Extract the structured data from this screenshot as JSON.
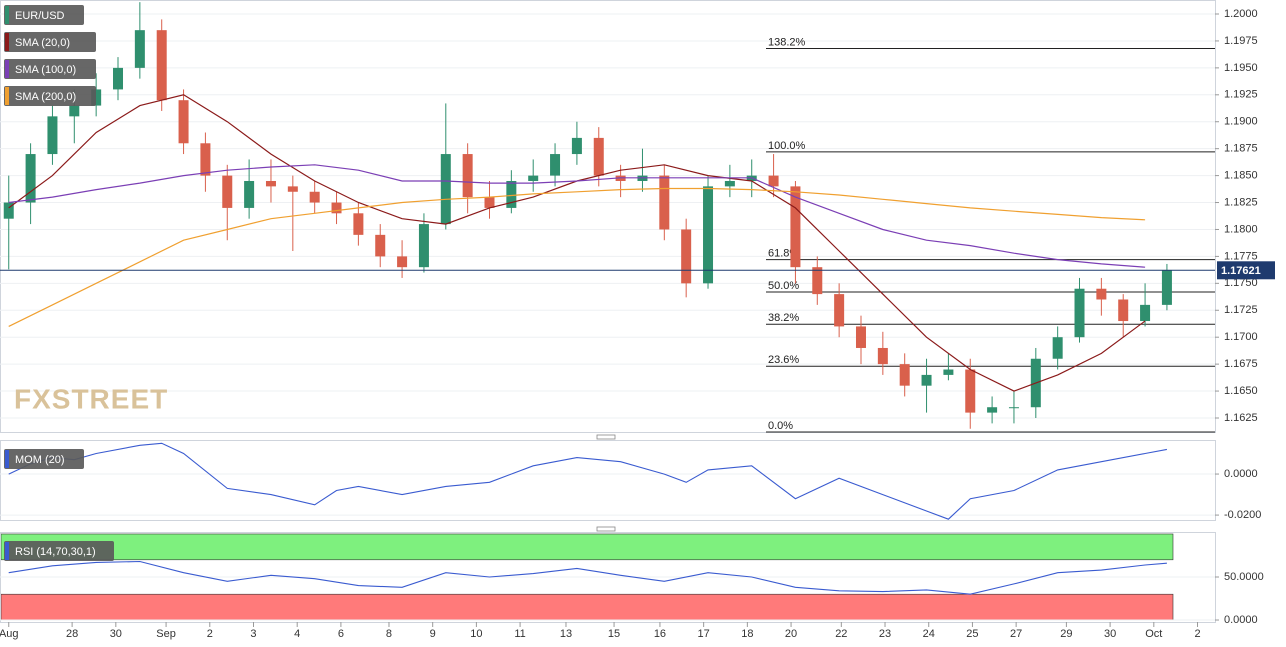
{
  "chart_data": [
    {
      "type": "candlestick",
      "name": "EUR/USD",
      "up_color": "#2f8f6e",
      "down_color": "#d9604c",
      "x": [
        0,
        0.5,
        1,
        1.5,
        2,
        2.5,
        3,
        3.5,
        4,
        4.5,
        5,
        5.5,
        6,
        6.5,
        7,
        7.5,
        8,
        8.5,
        9,
        9.5,
        10,
        10.5,
        11,
        11.5,
        12,
        12.5,
        13,
        13.5,
        14,
        14.5,
        15,
        15.5,
        16,
        16.5,
        17,
        17.5,
        18,
        18.5,
        19,
        19.5,
        20,
        20.5,
        21,
        21.5,
        22,
        22.5,
        23,
        23.5,
        24,
        24.5,
        25,
        25.5,
        26,
        26.5
      ],
      "open": [
        1.181,
        1.1825,
        1.187,
        1.1905,
        1.1915,
        1.193,
        1.195,
        1.1985,
        1.192,
        1.188,
        1.185,
        1.182,
        1.1845,
        1.184,
        1.1835,
        1.1825,
        1.1815,
        1.1795,
        1.1775,
        1.1765,
        1.1805,
        1.187,
        1.183,
        1.182,
        1.1845,
        1.185,
        1.187,
        1.1885,
        1.185,
        1.1845,
        1.185,
        1.18,
        1.175,
        1.184,
        1.1845,
        1.185,
        1.184,
        1.1765,
        1.174,
        1.171,
        1.169,
        1.1675,
        1.1655,
        1.1665,
        1.167,
        1.163,
        1.1635,
        1.1635,
        1.168,
        1.17,
        1.1745,
        1.1735,
        1.1715,
        1.173
      ],
      "high": [
        1.185,
        1.188,
        1.1915,
        1.193,
        1.1945,
        1.196,
        1.2011,
        1.1995,
        1.193,
        1.189,
        1.186,
        1.1865,
        1.1865,
        1.185,
        1.1845,
        1.1835,
        1.1825,
        1.1805,
        1.179,
        1.1815,
        1.1917,
        1.188,
        1.1845,
        1.1855,
        1.1865,
        1.188,
        1.19,
        1.1895,
        1.186,
        1.1875,
        1.186,
        1.181,
        1.185,
        1.186,
        1.1865,
        1.187,
        1.1845,
        1.1775,
        1.175,
        1.172,
        1.1705,
        1.1685,
        1.168,
        1.1685,
        1.168,
        1.1645,
        1.165,
        1.169,
        1.171,
        1.1755,
        1.1755,
        1.174,
        1.175,
        1.1768
      ],
      "low": [
        1.1763,
        1.1805,
        1.186,
        1.188,
        1.1905,
        1.192,
        1.194,
        1.191,
        1.187,
        1.1835,
        1.179,
        1.181,
        1.1825,
        1.178,
        1.1815,
        1.1805,
        1.1785,
        1.1765,
        1.1755,
        1.176,
        1.18,
        1.1815,
        1.181,
        1.1815,
        1.1835,
        1.184,
        1.186,
        1.184,
        1.183,
        1.1835,
        1.179,
        1.1737,
        1.1745,
        1.183,
        1.183,
        1.183,
        1.175,
        1.173,
        1.17,
        1.1675,
        1.1665,
        1.1645,
        1.163,
        1.166,
        1.1615,
        1.162,
        1.162,
        1.1625,
        1.167,
        1.1695,
        1.172,
        1.17,
        1.171,
        1.1725
      ],
      "close": [
        1.1825,
        1.187,
        1.1905,
        1.1915,
        1.193,
        1.195,
        1.1985,
        1.192,
        1.188,
        1.185,
        1.182,
        1.1845,
        1.184,
        1.1835,
        1.1825,
        1.1815,
        1.1795,
        1.1775,
        1.1765,
        1.1805,
        1.187,
        1.183,
        1.182,
        1.1845,
        1.185,
        1.187,
        1.1885,
        1.185,
        1.1845,
        1.185,
        1.18,
        1.175,
        1.184,
        1.1845,
        1.185,
        1.184,
        1.1765,
        1.174,
        1.171,
        1.169,
        1.1675,
        1.1655,
        1.1665,
        1.167,
        1.163,
        1.1635,
        1.1635,
        1.168,
        1.17,
        1.1745,
        1.1735,
        1.1715,
        1.173,
        1.1762
      ],
      "overlays": [
        {
          "name": "SMA (20,0)",
          "color": "#8b1a1a",
          "x": [
            0,
            1,
            2,
            3,
            4,
            5,
            6,
            7,
            8,
            9,
            10,
            11,
            12,
            13,
            14,
            15,
            16,
            17,
            18,
            19,
            20,
            21,
            22,
            23,
            24,
            25,
            26
          ],
          "values": [
            1.182,
            1.185,
            1.189,
            1.1915,
            1.1925,
            1.19,
            1.187,
            1.1845,
            1.1825,
            1.181,
            1.1805,
            1.182,
            1.183,
            1.1845,
            1.1855,
            1.186,
            1.185,
            1.1845,
            1.182,
            1.178,
            1.174,
            1.17,
            1.167,
            1.165,
            1.1665,
            1.1685,
            1.1715
          ]
        },
        {
          "name": "SMA (100,0)",
          "color": "#7b3fb5",
          "x": [
            0,
            1,
            2,
            3,
            4,
            5,
            6,
            7,
            8,
            9,
            10,
            11,
            12,
            13,
            14,
            15,
            16,
            17,
            18,
            19,
            20,
            21,
            22,
            23,
            24,
            25,
            26
          ],
          "values": [
            1.1825,
            1.183,
            1.1837,
            1.1843,
            1.185,
            1.1855,
            1.1858,
            1.186,
            1.1855,
            1.1845,
            1.1845,
            1.1843,
            1.1843,
            1.1845,
            1.1848,
            1.1848,
            1.1848,
            1.1848,
            1.183,
            1.1815,
            1.18,
            1.179,
            1.1785,
            1.1778,
            1.1772,
            1.1768,
            1.1765
          ]
        },
        {
          "name": "SMA (200,0)",
          "color": "#f0a030",
          "x": [
            0,
            1,
            2,
            3,
            4,
            5,
            6,
            7,
            8,
            9,
            10,
            11,
            12,
            13,
            14,
            15,
            16,
            17,
            18,
            19,
            20,
            21,
            22,
            23,
            24,
            25,
            26
          ],
          "values": [
            1.171,
            1.173,
            1.175,
            1.177,
            1.179,
            1.18,
            1.181,
            1.1815,
            1.182,
            1.1825,
            1.1828,
            1.183,
            1.1833,
            1.1835,
            1.1837,
            1.1838,
            1.1838,
            1.1837,
            1.1835,
            1.1832,
            1.1828,
            1.1824,
            1.182,
            1.1817,
            1.1814,
            1.1811,
            1.1809
          ]
        }
      ],
      "fib_levels": [
        {
          "label": "138.2%",
          "value": 1.1968
        },
        {
          "label": "100.0%",
          "value": 1.1872
        },
        {
          "label": "61.8%",
          "value": 1.1772
        },
        {
          "label": "50.0%",
          "value": 1.1742
        },
        {
          "label": "38.2%",
          "value": 1.1712
        },
        {
          "label": "23.6%",
          "value": 1.1673
        },
        {
          "label": "0.0%",
          "value": 1.1612
        }
      ],
      "last_price": {
        "value": 1.17621,
        "label": "1.17621"
      },
      "watermark": "FXSTREET",
      "grid": true,
      "xlim": [
        -0.2,
        27.6
      ],
      "xticks": [
        {
          "value": 0,
          "label": "Aug"
        },
        {
          "value": 1.45,
          "label": "28"
        },
        {
          "value": 2.45,
          "label": "30"
        },
        {
          "value": 3.6,
          "label": "Sep"
        },
        {
          "value": 4.6,
          "label": "2"
        },
        {
          "value": 5.6,
          "label": "3"
        },
        {
          "value": 6.6,
          "label": "4"
        },
        {
          "value": 7.6,
          "label": "6"
        },
        {
          "value": 8.7,
          "label": "8"
        },
        {
          "value": 9.7,
          "label": "9"
        },
        {
          "value": 10.7,
          "label": "10"
        },
        {
          "value": 11.7,
          "label": "11"
        },
        {
          "value": 12.75,
          "label": "13"
        },
        {
          "value": 13.85,
          "label": "15"
        },
        {
          "value": 14.9,
          "label": "16"
        },
        {
          "value": 15.9,
          "label": "17"
        },
        {
          "value": 16.9,
          "label": "18"
        },
        {
          "value": 17.9,
          "label": "20"
        },
        {
          "value": 19.05,
          "label": "22"
        },
        {
          "value": 20.05,
          "label": "23"
        },
        {
          "value": 21.05,
          "label": "24"
        },
        {
          "value": 22.05,
          "label": "25"
        },
        {
          "value": 23.05,
          "label": "27"
        },
        {
          "value": 24.2,
          "label": "29"
        },
        {
          "value": 25.2,
          "label": "30"
        },
        {
          "value": 26.2,
          "label": "Oct"
        },
        {
          "value": 27.2,
          "label": "2"
        }
      ],
      "ylim": [
        1.1612,
        1.2013
      ],
      "yticks": [
        {
          "value": 1.1625,
          "label": "1.1625"
        },
        {
          "value": 1.165,
          "label": "1.1650"
        },
        {
          "value": 1.1675,
          "label": "1.1675"
        },
        {
          "value": 1.17,
          "label": "1.1700"
        },
        {
          "value": 1.1725,
          "label": "1.1725"
        },
        {
          "value": 1.175,
          "label": "1.1750"
        },
        {
          "value": 1.1775,
          "label": "1.1775"
        },
        {
          "value": 1.18,
          "label": "1.1800"
        },
        {
          "value": 1.1825,
          "label": "1.1825"
        },
        {
          "value": 1.185,
          "label": "1.1850"
        },
        {
          "value": 1.1875,
          "label": "1.1875"
        },
        {
          "value": 1.19,
          "label": "1.1900"
        },
        {
          "value": 1.1925,
          "label": "1.1925"
        },
        {
          "value": 1.195,
          "label": "1.1950"
        },
        {
          "value": 1.1975,
          "label": "1.1975"
        },
        {
          "value": 1.2,
          "label": "1.2000"
        }
      ]
    },
    {
      "type": "line",
      "grid": true,
      "series": [
        {
          "name": "MOM (20)",
          "color": "#3a5bd0",
          "x": [
            0,
            0.5,
            1,
            1.5,
            2,
            3,
            3.5,
            4,
            5,
            6,
            7,
            7.5,
            8,
            9,
            10,
            11,
            12,
            13,
            14,
            15,
            15.5,
            16,
            17,
            18,
            19,
            20,
            21,
            21.5,
            22,
            23,
            24,
            25,
            26,
            26.5
          ],
          "values": [
            0.0,
            0.005,
            0.008,
            0.007,
            0.01,
            0.014,
            0.015,
            0.01,
            -0.007,
            -0.01,
            -0.015,
            -0.008,
            -0.006,
            -0.01,
            -0.006,
            -0.004,
            0.004,
            0.008,
            0.006,
            0.0,
            -0.004,
            0.002,
            0.004,
            -0.012,
            -0.002,
            -0.01,
            -0.018,
            -0.022,
            -0.012,
            -0.008,
            0.002,
            0.006,
            0.01,
            0.012
          ]
        }
      ],
      "ylim": [
        -0.0224,
        0.0166
      ],
      "yticks": [
        {
          "value": 0,
          "label": "0.0000"
        },
        {
          "value": -0.02,
          "label": "-0.0200"
        }
      ]
    },
    {
      "type": "line",
      "grid": true,
      "series": [
        {
          "name": "RSI (14,70,30,1)",
          "color": "#3a5bd0",
          "x": [
            0,
            1,
            2,
            3,
            4,
            5,
            6,
            7,
            8,
            9,
            10,
            11,
            12,
            13,
            14,
            15,
            16,
            17,
            18,
            19,
            20,
            21,
            22,
            23,
            24,
            25,
            26,
            26.5
          ],
          "values": [
            55,
            63,
            67,
            68,
            55,
            45,
            52,
            48,
            40,
            38,
            55,
            50,
            54,
            60,
            52,
            45,
            55,
            50,
            38,
            34,
            33,
            35,
            30,
            42,
            55,
            58,
            64,
            66
          ]
        }
      ],
      "bands": [
        {
          "from": 70,
          "to": 100,
          "color": "#7ef07e"
        },
        {
          "from": 0,
          "to": 30,
          "color": "#ff7a7a"
        }
      ],
      "ylim": [
        -2.3,
        102.3
      ],
      "yticks": [
        {
          "value": 50,
          "label": "50.0000"
        },
        {
          "value": 0,
          "label": "0.0000"
        }
      ]
    }
  ]
}
